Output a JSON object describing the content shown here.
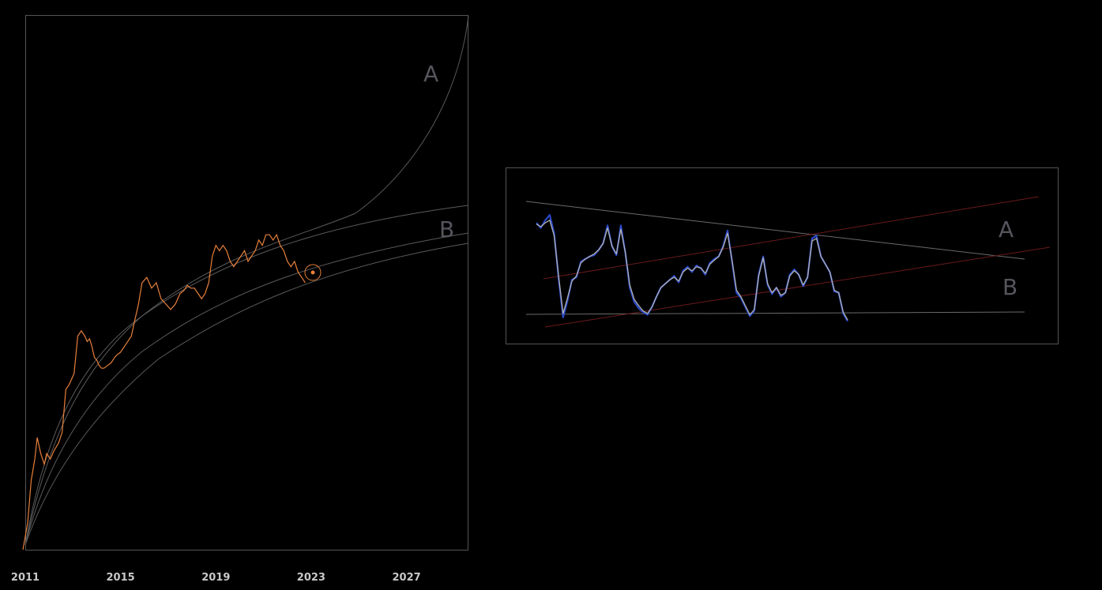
{
  "chart_data": [
    {
      "type": "line",
      "xlabel": "",
      "ylabel": "",
      "x_tick_labels": [
        "2011",
        "2015",
        "2019",
        "2023",
        "2027"
      ],
      "x_ticks": [
        2011,
        2015,
        2019,
        2023,
        2027
      ],
      "xlim": [
        2011,
        2029.6
      ],
      "ylim": [
        0,
        1
      ],
      "y_scale": "unlabeled",
      "grid": false,
      "zone_labels": [
        "A",
        "B"
      ],
      "series": [
        {
          "color": "#e8803a",
          "x": [
            2010.9,
            2011.1,
            2011.25,
            2011.4,
            2011.5,
            2011.65,
            2011.8,
            2011.9,
            2012.05,
            2012.2,
            2012.4,
            2012.55,
            2012.7,
            2012.85,
            2013.05,
            2013.2,
            2013.35,
            2013.5,
            2013.6,
            2013.7,
            2013.8,
            2013.9,
            2014.0,
            2014.1,
            2014.2,
            2014.3,
            2014.45,
            2014.6,
            2014.75,
            2014.85,
            2015.0,
            2015.15,
            2015.3,
            2015.45,
            2015.6,
            2015.75,
            2015.9,
            2016.1,
            2016.3,
            2016.5,
            2016.7,
            2016.9,
            2017.1,
            2017.3,
            2017.5,
            2017.65,
            2017.8,
            2017.95,
            2018.1,
            2018.25,
            2018.4,
            2018.55,
            2018.7,
            2018.85,
            2019.0,
            2019.15,
            2019.3,
            2019.45,
            2019.6,
            2019.75,
            2019.9,
            2020.05,
            2020.2,
            2020.35,
            2020.5,
            2020.65,
            2020.8,
            2020.95,
            2021.1,
            2021.25,
            2021.4,
            2021.55,
            2021.7,
            2021.85,
            2022.0,
            2022.15,
            2022.3,
            2022.45,
            2022.6,
            2022.75
          ],
          "y": [
            0.0,
            0.05,
            0.13,
            0.17,
            0.21,
            0.18,
            0.16,
            0.18,
            0.17,
            0.185,
            0.2,
            0.22,
            0.3,
            0.31,
            0.33,
            0.4,
            0.41,
            0.4,
            0.39,
            0.395,
            0.38,
            0.36,
            0.355,
            0.345,
            0.34,
            0.34,
            0.345,
            0.35,
            0.36,
            0.365,
            0.37,
            0.38,
            0.39,
            0.4,
            0.43,
            0.46,
            0.5,
            0.51,
            0.49,
            0.5,
            0.47,
            0.46,
            0.45,
            0.46,
            0.48,
            0.485,
            0.495,
            0.49,
            0.49,
            0.48,
            0.47,
            0.48,
            0.5,
            0.55,
            0.57,
            0.56,
            0.57,
            0.56,
            0.54,
            0.53,
            0.54,
            0.55,
            0.56,
            0.54,
            0.55,
            0.56,
            0.58,
            0.57,
            0.59,
            0.59,
            0.58,
            0.59,
            0.57,
            0.56,
            0.54,
            0.53,
            0.54,
            0.52,
            0.51,
            0.5
          ]
        }
      ]
    },
    {
      "type": "line",
      "title": "",
      "xlabel": "",
      "ylabel": "",
      "grid": false,
      "zone_labels": [
        "A",
        "B"
      ],
      "series": [
        {
          "color": "#2a49c8",
          "values": [
            0.78,
            0.74,
            0.8,
            0.84,
            0.7,
            0.35,
            0.05,
            0.18,
            0.34,
            0.36,
            0.48,
            0.5,
            0.52,
            0.53,
            0.57,
            0.62,
            0.76,
            0.6,
            0.53,
            0.76,
            0.55,
            0.28,
            0.17,
            0.12,
            0.09,
            0.07,
            0.13,
            0.21,
            0.28,
            0.31,
            0.34,
            0.37,
            0.32,
            0.41,
            0.44,
            0.4,
            0.45,
            0.43,
            0.38,
            0.47,
            0.5,
            0.52,
            0.6,
            0.72,
            0.48,
            0.24,
            0.2,
            0.13,
            0.06,
            0.1,
            0.38,
            0.52,
            0.3,
            0.23,
            0.28,
            0.21,
            0.24,
            0.38,
            0.42,
            0.38,
            0.29,
            0.36,
            0.66,
            0.68,
            0.52,
            0.46,
            0.4,
            0.25,
            0.24,
            0.08,
            0.02
          ]
        },
        {
          "color": "#b0b0b0",
          "values": [
            0.77,
            0.75,
            0.78,
            0.8,
            0.68,
            0.37,
            0.08,
            0.2,
            0.33,
            0.37,
            0.47,
            0.5,
            0.52,
            0.54,
            0.57,
            0.62,
            0.74,
            0.6,
            0.54,
            0.73,
            0.55,
            0.3,
            0.19,
            0.14,
            0.1,
            0.08,
            0.13,
            0.21,
            0.28,
            0.31,
            0.34,
            0.36,
            0.33,
            0.4,
            0.43,
            0.41,
            0.44,
            0.43,
            0.39,
            0.46,
            0.49,
            0.52,
            0.59,
            0.7,
            0.49,
            0.26,
            0.21,
            0.14,
            0.07,
            0.11,
            0.37,
            0.51,
            0.31,
            0.24,
            0.28,
            0.22,
            0.24,
            0.37,
            0.41,
            0.38,
            0.3,
            0.36,
            0.64,
            0.66,
            0.52,
            0.46,
            0.4,
            0.26,
            0.24,
            0.09,
            0.03
          ]
        }
      ]
    }
  ]
}
